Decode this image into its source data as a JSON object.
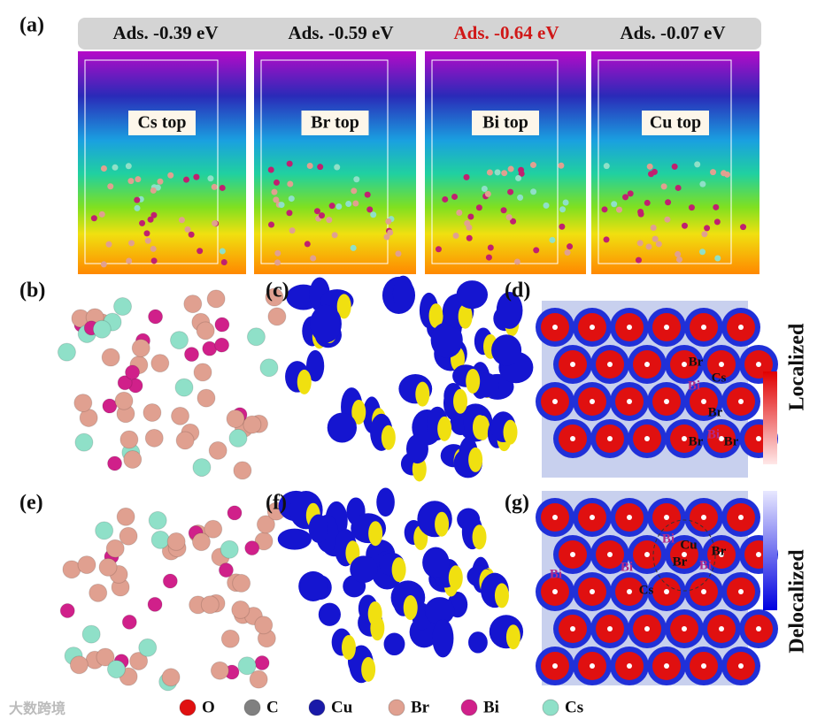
{
  "panel_labels": [
    "(a)",
    "(b)",
    "(c)",
    "(d)",
    "(e)",
    "(f)",
    "(g)"
  ],
  "adsorption": [
    {
      "energy": "Ads. -0.39 eV",
      "site": "Cs top",
      "color": "#111111"
    },
    {
      "energy": "Ads. -0.59 eV",
      "site": "Br top",
      "color": "#111111"
    },
    {
      "energy": "Ads. -0.64 eV",
      "site": "Bi top",
      "color": "#d01818"
    },
    {
      "energy": "Ads. -0.07 eV",
      "site": "Cu top",
      "color": "#111111"
    }
  ],
  "map_d_labels": [
    {
      "text": "Br",
      "color": "#111111"
    },
    {
      "text": "Cs",
      "color": "#111111"
    },
    {
      "text": "Bi",
      "color": "#b02a8a"
    },
    {
      "text": "Br",
      "color": "#111111"
    },
    {
      "text": "Bi",
      "color": "#b02a8a"
    },
    {
      "text": "Br",
      "color": "#111111"
    },
    {
      "text": "Br",
      "color": "#111111"
    }
  ],
  "map_g_labels": [
    {
      "text": "Bi",
      "color": "#b02a8a"
    },
    {
      "text": "Cu",
      "color": "#111111"
    },
    {
      "text": "Br",
      "color": "#111111"
    },
    {
      "text": "Bi",
      "color": "#b02a8a"
    },
    {
      "text": "Br",
      "color": "#111111"
    },
    {
      "text": "Bi",
      "color": "#b02a8a"
    },
    {
      "text": "Bi",
      "color": "#b02a8a"
    },
    {
      "text": "Cs",
      "color": "#111111"
    }
  ],
  "colorbar": {
    "top": "Localized",
    "bottom": "Delocalized"
  },
  "legend": [
    {
      "name": "O",
      "color": "#e01010"
    },
    {
      "name": "C",
      "color": "#808080"
    },
    {
      "name": "Cu",
      "color": "#1a1aa8"
    },
    {
      "name": "Br",
      "color": "#e0a090"
    },
    {
      "name": "Bi",
      "color": "#d0208a"
    },
    {
      "name": "Cs",
      "color": "#8fe0c8"
    }
  ],
  "watermark": "大数跨境"
}
